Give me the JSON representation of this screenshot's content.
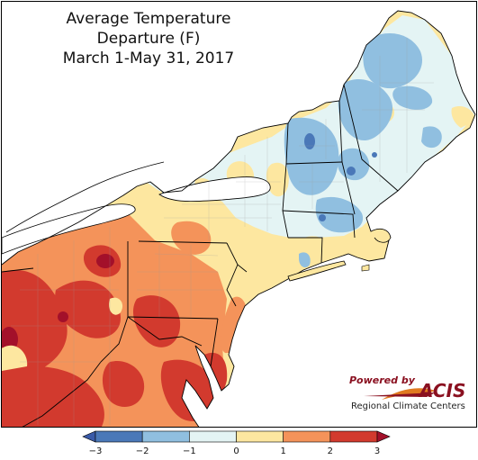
{
  "title": {
    "line1": "Average Temperature Departure (F)",
    "line2": "March 1-May 31, 2017"
  },
  "branding": {
    "powered_by": "Powered by",
    "name": "ACIS",
    "subtitle": "Regional Climate Centers"
  },
  "legend": {
    "bins": [
      {
        "min": -3,
        "max": -2,
        "color": "#4a78b8"
      },
      {
        "min": -2,
        "max": -1,
        "color": "#90bfe0"
      },
      {
        "min": -1,
        "max": 0,
        "color": "#e4f4f4"
      },
      {
        "min": 0,
        "max": 1,
        "color": "#fde7a0"
      },
      {
        "min": 1,
        "max": 2,
        "color": "#f4935a"
      },
      {
        "min": 2,
        "max": 3,
        "color": "#d23a2e"
      }
    ],
    "below_color": "#3a5aa8",
    "above_color": "#a3102a",
    "ticks": [
      "−3",
      "−2",
      "−1",
      "0",
      "1",
      "2",
      "3"
    ]
  },
  "colors": {
    "water": "#ffffff",
    "border": "#000000",
    "county": "#9a9a9a"
  }
}
